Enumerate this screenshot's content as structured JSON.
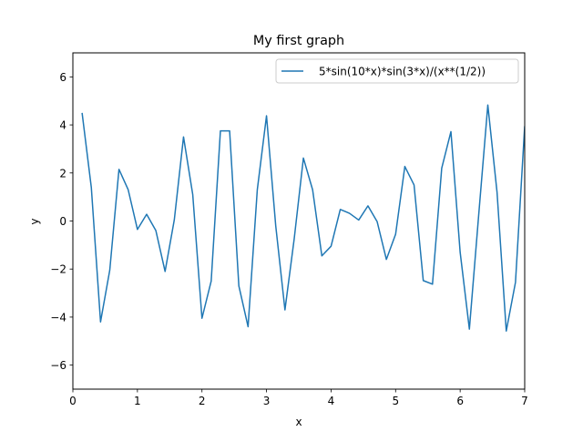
{
  "chart_data": {
    "type": "line",
    "title": "My first graph",
    "xlabel": "x",
    "ylabel": "y",
    "xlim": [
      0,
      7
    ],
    "ylim": [
      -7,
      7
    ],
    "x_ticks": [
      0,
      1,
      2,
      3,
      4,
      5,
      6,
      7
    ],
    "y_ticks": [
      -6,
      -4,
      -2,
      0,
      2,
      4,
      6
    ],
    "grid": false,
    "legend_position": "upper right",
    "series": [
      {
        "name": "5*sin(10*x)*sin(3*x)/(x**(1/2))",
        "color": "#1f77b4",
        "x": [
          0.142857,
          0.285714,
          0.428571,
          0.571429,
          0.714286,
          0.857143,
          1.0,
          1.142857,
          1.285714,
          1.428571,
          1.571429,
          1.714286,
          1.857143,
          2.0,
          2.142857,
          2.285714,
          2.428571,
          2.571429,
          2.714286,
          2.857143,
          3.0,
          3.142857,
          3.285714,
          3.428571,
          3.571429,
          3.714286,
          3.857143,
          4.0,
          4.142857,
          4.285714,
          4.428571,
          4.571429,
          4.714286,
          4.857143,
          5.0,
          5.142857,
          5.285714,
          5.428571,
          5.571429,
          5.714286,
          5.857143,
          6.0,
          6.142857,
          6.285714,
          6.428571,
          6.571429,
          6.714286,
          6.857143,
          7.0
        ],
        "y": [
          4.5,
          1.4,
          -4.2,
          -2.05,
          2.15,
          1.3,
          -0.35,
          0.28,
          -0.4,
          -2.1,
          0.05,
          3.5,
          1.1,
          -4.05,
          -2.5,
          3.75,
          3.75,
          -2.7,
          -4.4,
          1.3,
          4.38,
          -0.2,
          -3.7,
          -0.75,
          2.62,
          1.3,
          -1.45,
          -1.05,
          0.48,
          0.32,
          0.04,
          0.63,
          -0.03,
          -1.6,
          -0.55,
          2.27,
          1.5,
          -2.48,
          -2.63,
          2.2,
          3.72,
          -1.3,
          -4.5,
          0.2,
          4.83,
          1.2,
          -4.58,
          -2.55,
          3.95
        ]
      }
    ]
  }
}
